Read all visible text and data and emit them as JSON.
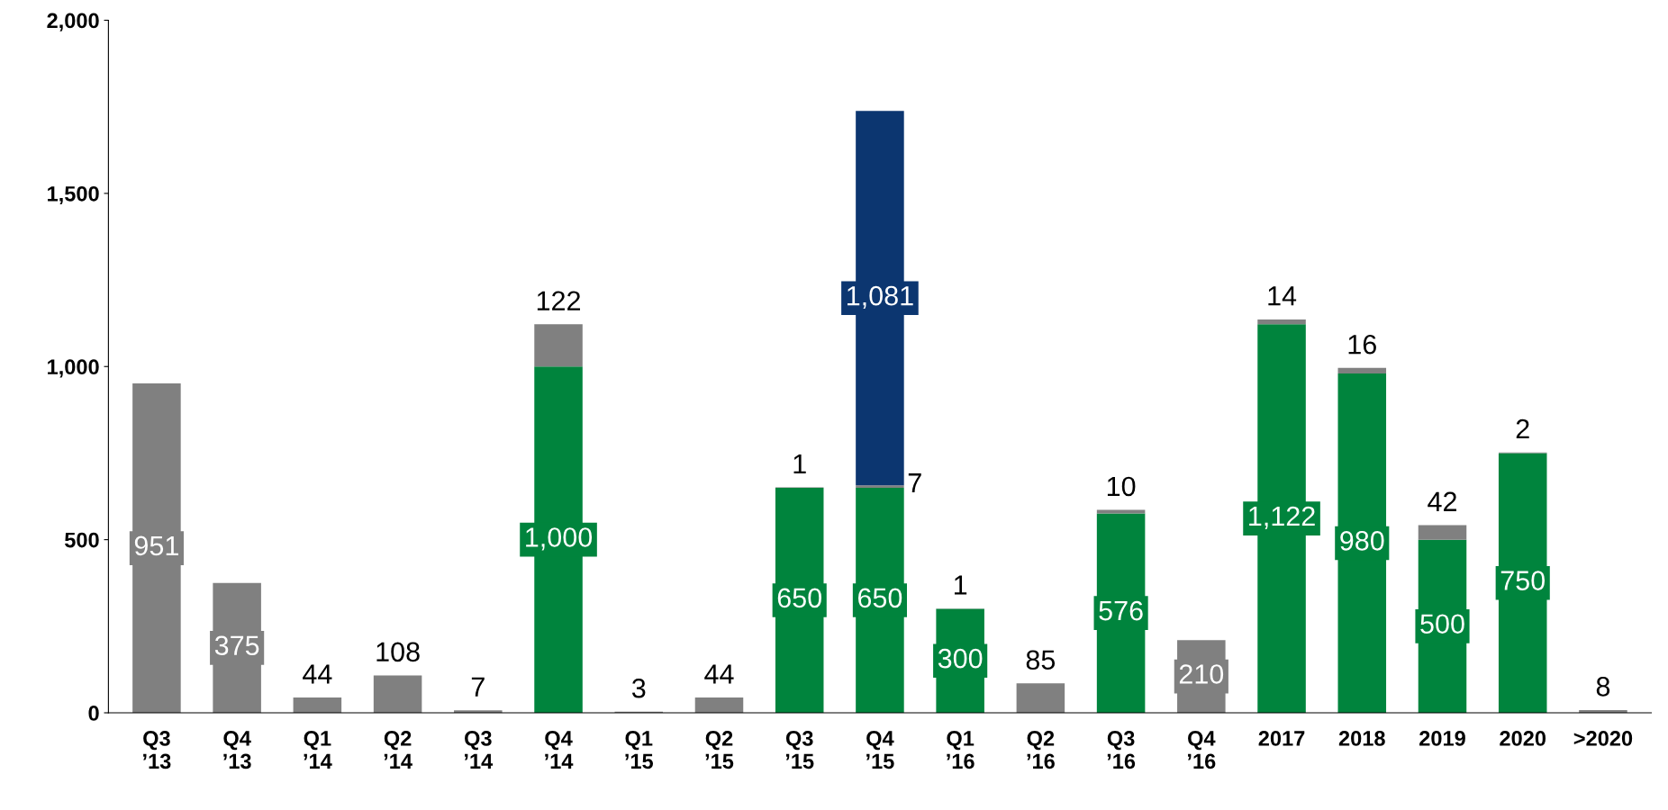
{
  "chart_data": {
    "type": "bar",
    "stacked": true,
    "grid": false,
    "categories": [
      "Q3\n’13",
      "Q4\n’13",
      "Q1\n’14",
      "Q2\n’14",
      "Q3\n’14",
      "Q4\n’14",
      "Q1\n’15",
      "Q2\n’15",
      "Q3\n’15",
      "Q4\n’15",
      "Q1\n’16",
      "Q2\n’16",
      "Q3\n’16",
      "Q4\n’16",
      "2017",
      "2018",
      "2019",
      "2020",
      ">2020"
    ],
    "series": [
      {
        "color": "#00843d",
        "values": [
          null,
          null,
          null,
          null,
          null,
          1000,
          null,
          null,
          650,
          650,
          300,
          null,
          576,
          null,
          1122,
          980,
          500,
          750,
          null
        ],
        "value_labels": [
          null,
          null,
          null,
          null,
          null,
          "1,000",
          null,
          null,
          "650",
          "650",
          "300",
          null,
          "576",
          null,
          "1,122",
          "980",
          "500",
          "750",
          null
        ]
      },
      {
        "color": "#808080",
        "values": [
          951,
          375,
          44,
          108,
          7,
          122,
          3,
          44,
          1,
          7,
          1,
          85,
          10,
          210,
          14,
          16,
          42,
          2,
          8
        ],
        "value_labels": [
          "951",
          "375",
          "44",
          "108",
          "7",
          "122",
          "3",
          "44",
          "1",
          "7",
          "1",
          "85",
          "10",
          "210",
          "14",
          "16",
          "42",
          "2",
          "8"
        ]
      },
      {
        "color": "#0c3670",
        "values": [
          null,
          null,
          null,
          null,
          null,
          null,
          null,
          null,
          null,
          1081,
          null,
          null,
          null,
          null,
          null,
          null,
          null,
          null,
          null
        ],
        "value_labels": [
          null,
          null,
          null,
          null,
          null,
          null,
          null,
          null,
          null,
          "1,081",
          null,
          null,
          null,
          null,
          null,
          null,
          null,
          null,
          null
        ]
      }
    ],
    "ylim": [
      0,
      2000
    ],
    "yticks": [
      0,
      {
        "value": 500,
        "label": "500"
      },
      {
        "value": 1000,
        "label": "1,000"
      },
      {
        "value": 1500,
        "label": "1,500"
      },
      {
        "value": 2000,
        "label": "2,000"
      }
    ]
  }
}
